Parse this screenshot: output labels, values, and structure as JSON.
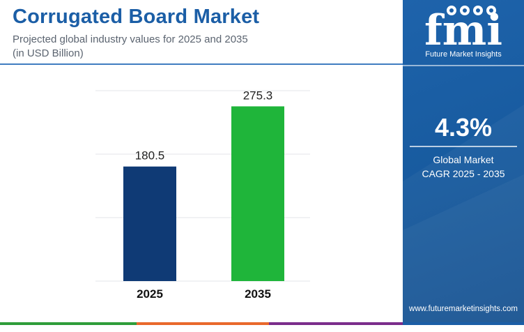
{
  "header": {
    "title": "Corrugated Board Market",
    "subtitle_line1": "Projected global industry values for 2025 and 2035",
    "subtitle_line2": "(in USD Billion)"
  },
  "sidebar": {
    "logo_text": "fmi",
    "brand": "Future Market Insights",
    "cagr_value": "4.3%",
    "cagr_label_line1": "Global Market",
    "cagr_label_line2": "CAGR 2025 - 2035",
    "website": "www.futuremarketinsights.com"
  },
  "colors": {
    "title": "#1b5ea6",
    "panel": "#1b5ea6",
    "bar_2025": "#0f3a75",
    "bar_2035": "#1fb53a",
    "strip": [
      "#2f9d3a",
      "#e9692c",
      "#7b2d8b",
      "#1b5ea6"
    ]
  },
  "chart_data": {
    "type": "bar",
    "categories": [
      "2025",
      "2035"
    ],
    "values": [
      180.5,
      275.3
    ],
    "value_labels": [
      "180.5",
      "275.3"
    ],
    "title": "",
    "xlabel": "",
    "ylabel": "",
    "ylim": [
      0,
      300
    ],
    "grid": true,
    "legend": "none"
  }
}
